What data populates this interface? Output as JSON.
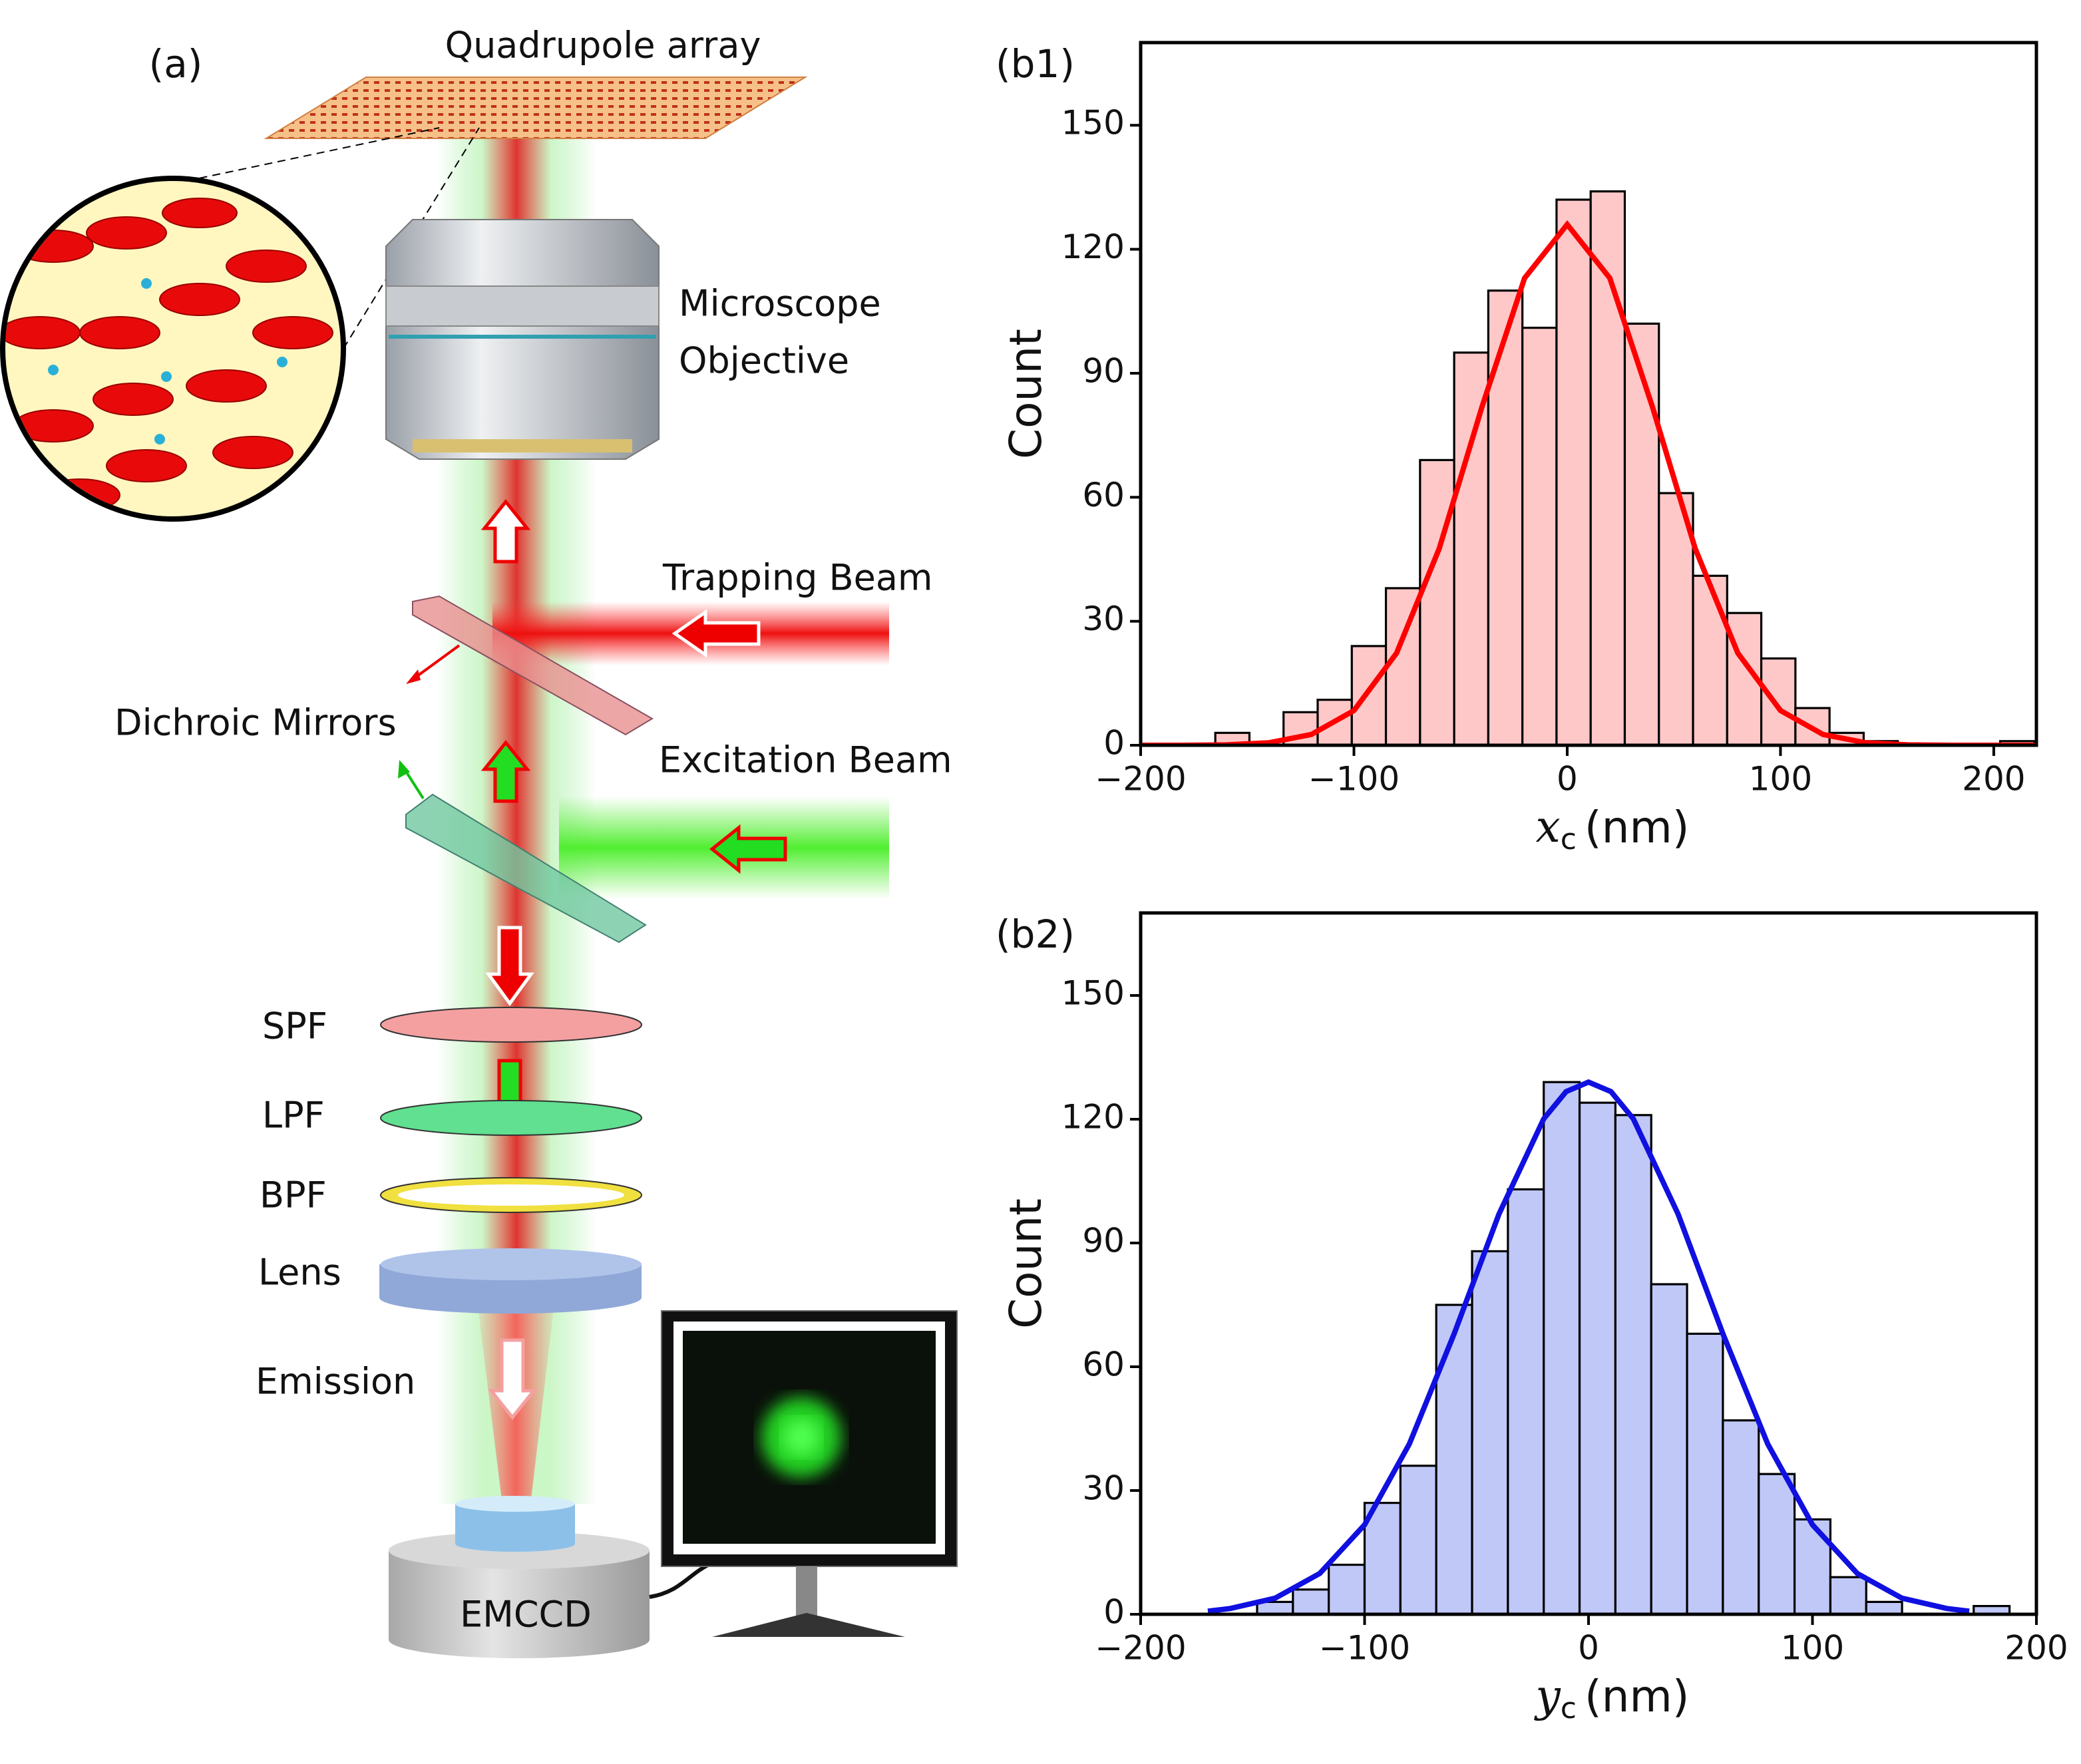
{
  "diagram": {
    "panel_label": "(a)",
    "quadrupole": "Quadrupole array",
    "objective_1": "Microscope",
    "objective_2": "Objective",
    "trapping": "Trapping Beam",
    "dichroic": "Dichroic Mirrors",
    "excitation": "Excitation Beam",
    "spf": "SPF",
    "lpf": "LPF",
    "bpf": "BPF",
    "lens": "Lens",
    "emission": "Emission",
    "camera": "EMCCD"
  },
  "chart_data": [
    {
      "type": "histogram",
      "panel_label": "(b1)",
      "bins": [
        -165,
        -149,
        -133,
        -117,
        -101,
        -85,
        -69,
        -53,
        -37,
        -21,
        -5,
        11,
        27,
        43,
        59,
        75,
        91,
        107,
        123,
        139,
        155,
        171,
        187,
        203,
        219
      ],
      "counts": [
        3,
        0,
        8,
        11,
        24,
        38,
        69,
        95,
        110,
        101,
        132,
        134,
        102,
        61,
        41,
        32,
        21,
        9,
        3,
        1,
        0,
        0,
        0,
        1
      ],
      "color": "#ffc8c8",
      "edgecolor": "#000000",
      "fit": {
        "color": "#ff0000",
        "x": [
          -200,
          -180,
          -160,
          -140,
          -120,
          -100,
          -80,
          -60,
          -40,
          -20,
          0,
          20,
          40,
          60,
          80,
          100,
          120,
          140,
          160,
          180,
          200,
          220
        ],
        "y": [
          0,
          0,
          0.1,
          0.6,
          2.6,
          8.4,
          22.3,
          47.6,
          81.8,
          113,
          126,
          113,
          81.8,
          47.6,
          22.3,
          8.4,
          2.6,
          0.6,
          0.1,
          0,
          0,
          0
        ]
      },
      "xlim": [
        -200,
        220
      ],
      "ylim": [
        0,
        170
      ],
      "xticks": [
        {
          "value": -200,
          "label": "−200"
        },
        {
          "value": -100,
          "label": "−100"
        },
        0,
        100,
        200
      ],
      "yticks": [
        0,
        30,
        60,
        90,
        120,
        150
      ],
      "x_label": {
        "var": "x",
        "sub": "c",
        "unit": "(nm)"
      },
      "y_label": "Count"
    },
    {
      "type": "histogram",
      "panel_label": "(b2)",
      "bins": [
        -148,
        -132,
        -116,
        -100,
        -84,
        -68,
        -52,
        -36,
        -20,
        -4,
        12,
        28,
        44,
        60,
        76,
        92,
        108,
        124,
        140,
        156,
        172,
        188
      ],
      "counts": [
        3,
        6,
        12,
        27,
        36,
        75,
        88,
        103,
        129,
        124,
        121,
        80,
        68,
        47,
        34,
        23,
        9,
        3,
        0,
        0,
        2
      ],
      "color": "#c0c8f8",
      "edgecolor": "#000000",
      "fit": {
        "color": "#1010e0",
        "x": [
          -170,
          -160,
          -140,
          -120,
          -100,
          -80,
          -60,
          -40,
          -20,
          -10,
          0,
          10,
          20,
          40,
          60,
          80,
          100,
          120,
          140,
          160,
          170
        ],
        "y": [
          0.75,
          1.4,
          3.9,
          9.9,
          21.7,
          41.3,
          68.0,
          97.0,
          120.1,
          126.7,
          129,
          126.7,
          120.1,
          97.0,
          68.0,
          41.3,
          21.7,
          9.9,
          3.9,
          1.4,
          0.75
        ]
      },
      "xlim": [
        -200,
        200
      ],
      "ylim": [
        0,
        170
      ],
      "xticks": [
        {
          "value": -200,
          "label": "−200"
        },
        {
          "value": -100,
          "label": "−100"
        },
        0,
        100,
        200
      ],
      "yticks": [
        0,
        30,
        60,
        90,
        120,
        150
      ],
      "x_label": {
        "var": "y",
        "sub": "c",
        "unit": "(nm)"
      },
      "y_label": "Count"
    }
  ]
}
